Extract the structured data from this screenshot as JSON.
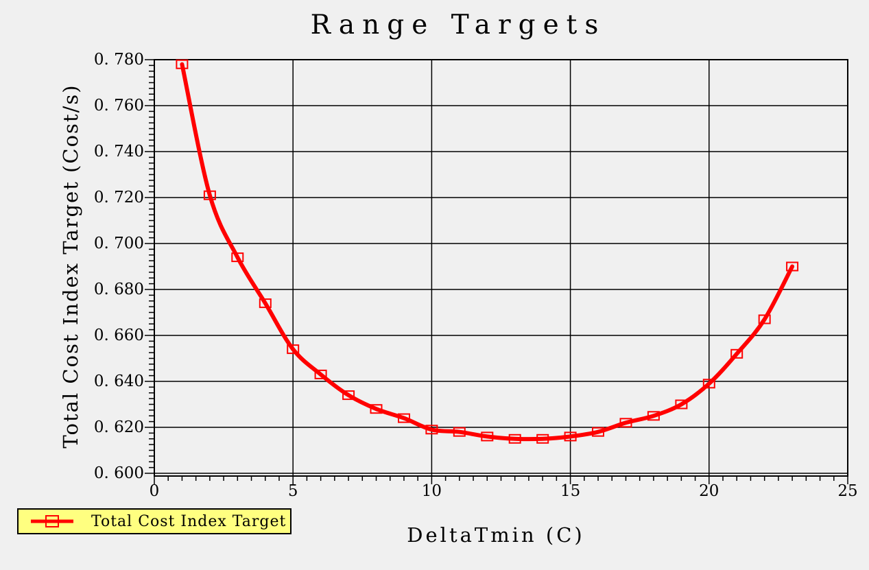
{
  "colors": {
    "background": "#F0F0F0",
    "grid": "#000000",
    "frame": "#000000",
    "text": "#000000",
    "curve": "#FF0000",
    "legend_bg": "#FFFF80",
    "legend_border": "#000000"
  },
  "chart_data": {
    "type": "line",
    "title": "Range Targets",
    "xlabel": "DeltaTmin (C)",
    "ylabel": "Total Cost Index Target (Cost/s)",
    "xlim": [
      0,
      25
    ],
    "ylim": [
      0.6,
      0.78
    ],
    "grid": true,
    "x_tick_values": [
      0,
      5,
      10,
      15,
      20,
      25
    ],
    "x_tick_labels": [
      "0",
      "5",
      "10",
      "15",
      "20",
      "25"
    ],
    "x_minor_step": 0.5,
    "x_major_step": 5,
    "y_tick_values": [
      0.78,
      0.76,
      0.74,
      0.72,
      0.7,
      0.68,
      0.66,
      0.64,
      0.62,
      0.6
    ],
    "y_tick_labels": [
      "0. 780",
      "0. 760",
      "0. 740",
      "0. 720",
      "0. 700",
      "0. 680",
      "0. 660",
      "0. 640",
      "0. 620",
      "0. 600"
    ],
    "y_minor_step": 0.0025,
    "y_major_step": 0.02,
    "legend": {
      "position": "bottom-left",
      "entries": [
        {
          "label": "Total Cost Index Target",
          "color": "#FF0000",
          "marker": "open-square"
        }
      ]
    },
    "series": [
      {
        "name": "Total Cost Index Target",
        "color": "#FF0000",
        "marker": "open-square",
        "x": [
          1,
          2,
          3,
          4,
          5,
          6,
          7,
          8,
          9,
          10,
          11,
          12,
          13,
          14,
          15,
          16,
          17,
          18,
          19,
          20,
          21,
          22,
          23
        ],
        "y": [
          0.778,
          0.721,
          0.694,
          0.674,
          0.654,
          0.643,
          0.634,
          0.628,
          0.624,
          0.619,
          0.618,
          0.616,
          0.615,
          0.615,
          0.616,
          0.618,
          0.622,
          0.625,
          0.63,
          0.639,
          0.652,
          0.667,
          0.69
        ]
      }
    ]
  }
}
